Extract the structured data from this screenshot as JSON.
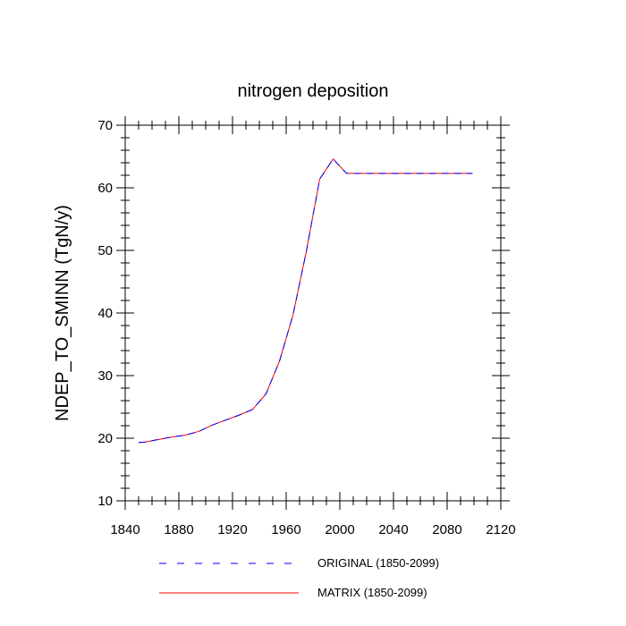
{
  "chart_data": {
    "type": "line",
    "title": "nitrogen deposition",
    "xlabel": "",
    "ylabel": "NDEP_TO_SMINN  (TgN/y)",
    "xlim": [
      1840,
      2120
    ],
    "ylim": [
      10,
      70
    ],
    "xticks": [
      1840,
      1880,
      1920,
      1960,
      2000,
      2040,
      2080,
      2120
    ],
    "yticks": [
      10,
      20,
      30,
      40,
      50,
      60,
      70
    ],
    "grid": false,
    "legend_position": "bottom",
    "x": [
      1850,
      1855,
      1865,
      1875,
      1885,
      1895,
      1905,
      1915,
      1925,
      1935,
      1945,
      1955,
      1965,
      1975,
      1985,
      1995,
      2005,
      2015,
      2025,
      2035,
      2045,
      2055,
      2065,
      2075,
      2085,
      2095,
      2099
    ],
    "series": [
      {
        "name": "ORIGINAL (1850-2099)",
        "color": "#0000ff",
        "dash": "dashed",
        "values": [
          19.3,
          19.4,
          19.8,
          20.2,
          20.5,
          21.1,
          22.1,
          22.9,
          23.7,
          24.6,
          27.1,
          32.3,
          39.6,
          49.8,
          61.4,
          64.6,
          62.3,
          62.3,
          62.3,
          62.3,
          62.3,
          62.3,
          62.3,
          62.3,
          62.3,
          62.3,
          62.3
        ]
      },
      {
        "name": "MATRIX (1850-2099)",
        "color": "#ff0000",
        "dash": "solid",
        "values": [
          19.3,
          19.4,
          19.8,
          20.2,
          20.5,
          21.1,
          22.1,
          22.9,
          23.7,
          24.6,
          27.1,
          32.3,
          39.6,
          49.8,
          61.4,
          64.6,
          62.3,
          62.3,
          62.3,
          62.3,
          62.3,
          62.3,
          62.3,
          62.3,
          62.3,
          62.3,
          62.3
        ]
      }
    ]
  }
}
